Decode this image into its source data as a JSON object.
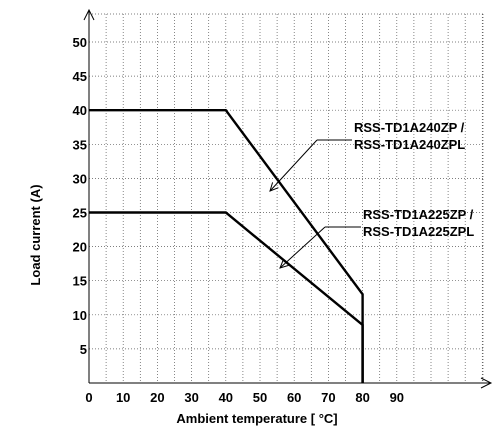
{
  "chart_data": {
    "type": "line",
    "title": "",
    "xlabel": "Ambient  temperature [ °C]",
    "ylabel": "Load current (A)",
    "xlim": [
      0,
      100
    ],
    "ylim": [
      0,
      55
    ],
    "x_ticks": [
      "0",
      "10",
      "20",
      "30",
      "40",
      "50",
      "60",
      "70",
      "80",
      "90"
    ],
    "y_ticks": [
      "5",
      "10",
      "15",
      "20",
      "25",
      "30",
      "35",
      "40",
      "45",
      "50"
    ],
    "grid": true,
    "series": [
      {
        "name": "RSS-TD1A240ZP / RSS-TD1A240ZPL",
        "points": [
          [
            0,
            40
          ],
          [
            40,
            40
          ],
          [
            80,
            13
          ],
          [
            80,
            0
          ]
        ]
      },
      {
        "name": "RSS-TD1A225ZP / RSS-TD1A225ZPL",
        "points": [
          [
            0,
            25
          ],
          [
            40,
            25
          ],
          [
            80,
            8.5
          ],
          [
            80,
            0
          ]
        ]
      }
    ],
    "annotations": [
      {
        "lines": [
          "RSS-TD1A240ZP /",
          "RSS-TD1A240ZPL"
        ],
        "series_index": 0
      },
      {
        "lines": [
          "RSS-TD1A225ZP /",
          "RSS-TD1A225ZPL"
        ],
        "series_index": 1
      }
    ]
  }
}
